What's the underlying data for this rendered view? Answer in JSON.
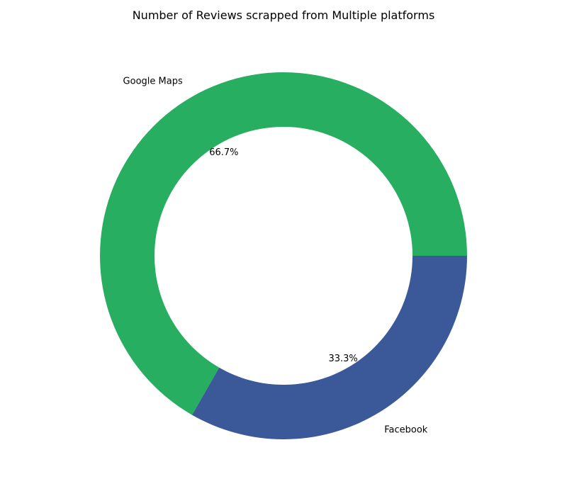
{
  "chart_data": {
    "type": "pie",
    "variant": "donut",
    "title": "Number of Reviews scrapped from Multiple platforms",
    "slices": [
      {
        "label": "Google Maps",
        "value": 66.7,
        "pct_label": "66.7%",
        "color": "#28AE60"
      },
      {
        "label": "Facebook",
        "value": 33.3,
        "pct_label": "33.3%",
        "color": "#3B5998"
      }
    ],
    "start_angle_deg": 0,
    "direction": "counterclockwise",
    "legend": "none"
  }
}
